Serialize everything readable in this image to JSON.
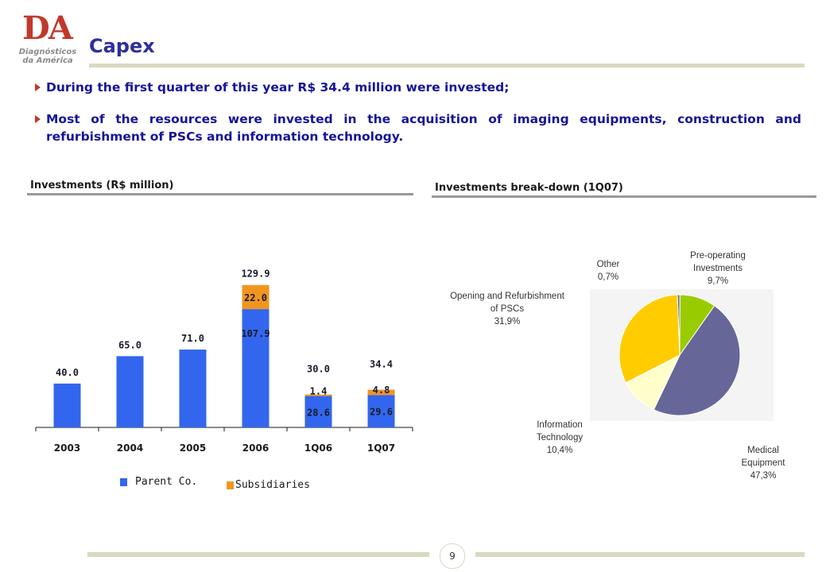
{
  "logo": {
    "mark": "DA",
    "subtitle_line1": "Diagnósticos",
    "subtitle_line2": "da América"
  },
  "title": "Capex",
  "bullets": [
    "During the first quarter of this year R$ 34.4 million were invested;",
    "Most of the resources were invested in the acquisition of imaging equipments, construction and refurbishment of PSCs and information technology."
  ],
  "left_section_label": "Investments (R$ million)",
  "right_section_label": "Investments break-down (1Q07)",
  "colors": {
    "parent": "#3366ee",
    "subsidiaries": "#f0961e",
    "title": "#2f2f9a",
    "bullet_text": "#15159a",
    "bullet_marker": "#c0392b"
  },
  "chart_data": [
    {
      "type": "bar",
      "stacked": true,
      "categories": [
        "2003",
        "2004",
        "2005",
        "2006",
        "1Q06",
        "1Q07"
      ],
      "series": [
        {
          "name": "Parent Co.",
          "values": [
            40.0,
            65.0,
            71.0,
            107.9,
            28.6,
            29.6
          ],
          "labels": [
            "40.0",
            "65.0",
            "71.0",
            "107.9",
            "28.6",
            "29.6"
          ],
          "color": "#3366ee"
        },
        {
          "name": "Subsidiaries",
          "values": [
            0,
            0,
            0,
            22.0,
            1.4,
            4.8
          ],
          "labels": [
            "",
            "",
            "",
            "22.0",
            "1.4",
            "4.8"
          ],
          "color": "#f0961e"
        }
      ],
      "totals": [
        "",
        "",
        "",
        "129.9",
        "30.0",
        "34.4"
      ],
      "legend": "bottom"
    },
    {
      "type": "pie",
      "slices": [
        {
          "name": "Other",
          "pct_label": "0,7%",
          "value": 0.7,
          "color": "#707070"
        },
        {
          "name": "Pre-operating Investments",
          "pct_label": "9,7%",
          "value": 9.7,
          "color": "#99cc00"
        },
        {
          "name": "Medical Equipment",
          "pct_label": "47,3%",
          "value": 47.3,
          "color": "#666699"
        },
        {
          "name": "Information Technology",
          "pct_label": "10,4%",
          "value": 10.4,
          "color": "#ffffcc"
        },
        {
          "name": "Opening and Refurbishment of PSCs",
          "pct_label": "31,9%",
          "value": 31.9,
          "color": "#ffcc00"
        }
      ]
    }
  ],
  "pie_labels": {
    "other": {
      "line1": "Other",
      "pct": "0,7%"
    },
    "preop": {
      "line1": "Pre-operating",
      "line2": "Investments",
      "pct": "9,7%"
    },
    "medical": {
      "line1": "Medical",
      "line2": "Equipment",
      "pct": "47,3%"
    },
    "it": {
      "line1": "Information",
      "line2": "Technology",
      "pct": "10,4%"
    },
    "psc": {
      "line1": "Opening and Refurbishment",
      "line2": "of PSCs",
      "pct": "31,9%"
    }
  },
  "page_number": "9"
}
